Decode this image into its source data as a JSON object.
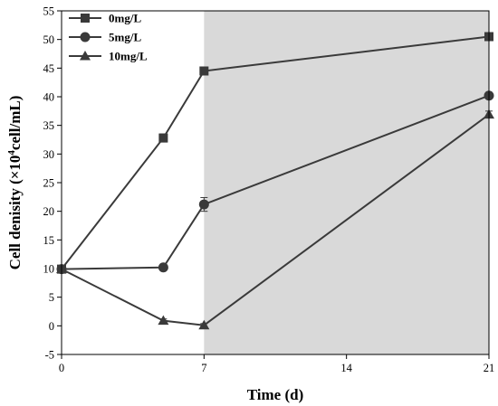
{
  "chart_data": {
    "type": "line",
    "title": "",
    "xlabel": "Time (d)",
    "ylabel_main": "Cell denisity (×10",
    "ylabel_sup": "4",
    "ylabel_tail": "cell/mL)",
    "xlim": [
      0,
      21
    ],
    "ylim": [
      -5,
      55
    ],
    "xticks": [
      0,
      7,
      14,
      21
    ],
    "xtick_labels": [
      "0",
      "7",
      "14",
      "21"
    ],
    "yticks": [
      -5,
      0,
      5,
      10,
      15,
      20,
      25,
      30,
      35,
      40,
      45,
      50,
      55
    ],
    "ytick_labels": [
      "-5",
      "0",
      "5",
      "10",
      "15",
      "20",
      "25",
      "30",
      "35",
      "40",
      "45",
      "50",
      "55"
    ],
    "shaded_region": {
      "x_start": 7,
      "x_end": 21,
      "color": "#d9d9d9"
    },
    "legend_position": "top-left",
    "grid": false,
    "series": [
      {
        "name": "0mg/L",
        "marker": "square",
        "color": "#3a3a3a",
        "x": [
          0,
          5,
          7,
          21
        ],
        "y": [
          9.9,
          32.8,
          44.5,
          50.5
        ],
        "err": [
          0.5,
          0.7,
          0.5,
          0.5
        ]
      },
      {
        "name": "5mg/L",
        "marker": "circle",
        "color": "#3a3a3a",
        "x": [
          0,
          5,
          7,
          21
        ],
        "y": [
          9.9,
          10.2,
          21.2,
          40.2
        ],
        "err": [
          0.4,
          0.4,
          1.2,
          0.5
        ]
      },
      {
        "name": "10mg/L",
        "marker": "triangle",
        "color": "#3a3a3a",
        "x": [
          0,
          5,
          7,
          21
        ],
        "y": [
          9.9,
          0.9,
          0.1,
          36.9
        ],
        "err": [
          0.4,
          0.3,
          0.3,
          0.6
        ]
      }
    ]
  }
}
